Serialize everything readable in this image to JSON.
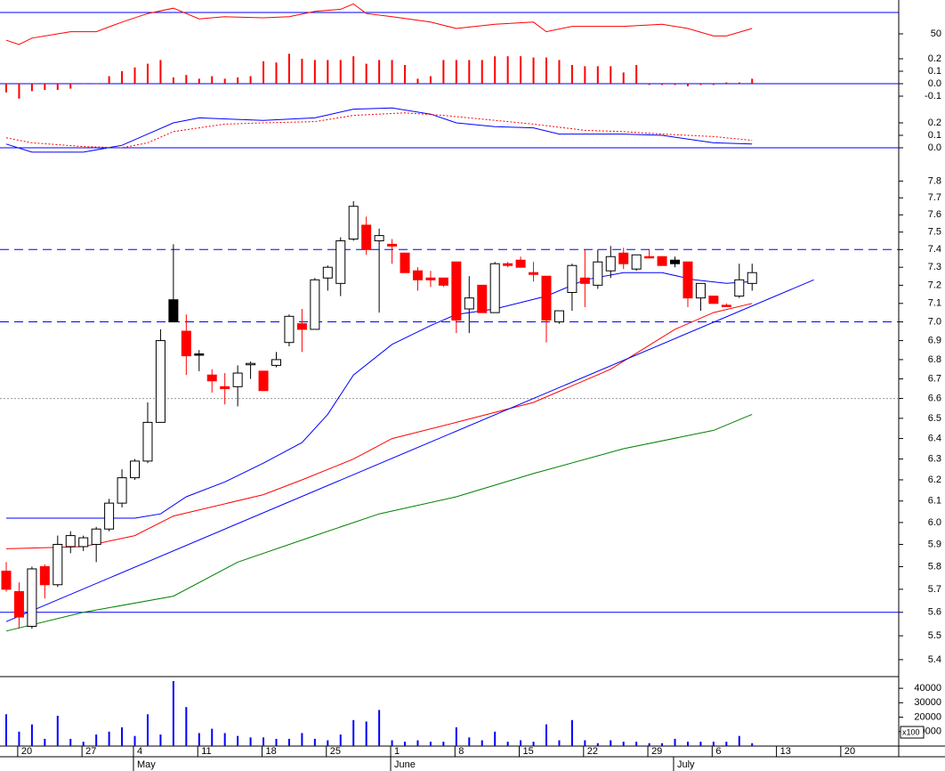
{
  "chart_data": [
    {
      "type": "line",
      "ylim": [
        30,
        80
      ],
      "yticks": [
        50
      ],
      "xlim": [
        -0.484,
        69.4
      ],
      "level": 70,
      "level_color": "#0000ff",
      "series": [
        {
          "color": "#ff0000",
          "x": [
            0,
            1,
            2,
            4,
            5,
            7,
            9,
            11,
            13,
            14,
            15,
            17,
            20,
            22,
            24,
            26,
            27,
            28,
            30,
            33,
            35,
            38,
            41,
            42,
            44,
            48,
            51,
            53,
            55,
            56,
            58
          ],
          "values": [
            44,
            40,
            46,
            50,
            52,
            52,
            61,
            69,
            74,
            69,
            64,
            66,
            65,
            66,
            71,
            73,
            78,
            69,
            66,
            61,
            55,
            59,
            61,
            52,
            57,
            57,
            59,
            55,
            48,
            48,
            55
          ]
        }
      ]
    },
    {
      "type": "bar",
      "ylim": [
        -0.15,
        0.25
      ],
      "yticks": [
        0.2,
        0.1,
        {
          "value": 0,
          "label": "0.0"
        },
        -0.1
      ],
      "xlim": [
        -0.484,
        69.4
      ],
      "color": "#ff0000",
      "zero_line_color": "#0000ff",
      "values": [
        -0.07,
        -0.12,
        -0.06,
        -0.05,
        -0.05,
        -0.04,
        0,
        0,
        0.06,
        0.1,
        0.13,
        0.16,
        0.19,
        0.05,
        0.07,
        0.04,
        0.06,
        0.04,
        0.05,
        0.06,
        0.18,
        0.17,
        0.24,
        0.2,
        0.19,
        0.19,
        0.19,
        0.22,
        0.16,
        0.19,
        0.19,
        0.15,
        0.04,
        0.06,
        0.19,
        0.19,
        0.19,
        0.19,
        0.22,
        0.22,
        0.22,
        0.21,
        0.21,
        0.19,
        0.15,
        0.14,
        0.14,
        0.14,
        0.09,
        0.15,
        -0.01,
        -0.01,
        -0.01,
        -0.02,
        -0.01,
        -0.01,
        0.01,
        0.01,
        0.04
      ]
    },
    {
      "type": "line",
      "ylim": [
        -0.05,
        0.35
      ],
      "yticks": [
        0.2,
        0.1,
        {
          "value": 0,
          "label": "0.0"
        }
      ],
      "xlim": [
        -0.484,
        69.4
      ],
      "zero_line_color": "#0000ff",
      "series": [
        {
          "color": "#0000ff",
          "style": "solid",
          "x": [
            0,
            2,
            6,
            9,
            11,
            13,
            15,
            20,
            24,
            27,
            30,
            33,
            35,
            38,
            41,
            43,
            48,
            51,
            55,
            58
          ],
          "values": [
            0.03,
            -0.035,
            -0.035,
            0.02,
            0.11,
            0.2,
            0.24,
            0.22,
            0.24,
            0.31,
            0.32,
            0.27,
            0.2,
            0.17,
            0.16,
            0.11,
            0.11,
            0.1,
            0.04,
            0.03
          ]
        },
        {
          "color": "#ff0000",
          "style": "dotted",
          "x": [
            0,
            2,
            6,
            9,
            11,
            13,
            17,
            20,
            24,
            27,
            31,
            34,
            38,
            41,
            45,
            48,
            51,
            55,
            58
          ],
          "values": [
            0.08,
            0.04,
            0.01,
            0,
            0.04,
            0.13,
            0.19,
            0.2,
            0.21,
            0.26,
            0.28,
            0.26,
            0.22,
            0.19,
            0.14,
            0.13,
            0.11,
            0.09,
            0.06
          ]
        }
      ]
    },
    {
      "type": "candlestick",
      "log_scale": true,
      "ylim": [
        5.33,
        7.98
      ],
      "xlim": [
        -0.484,
        69.4
      ],
      "yticks": [
        7.8,
        7.7,
        7.6,
        7.5,
        7.4,
        7.3,
        7.2,
        7.1,
        {
          "value": 7,
          "label": "7.0"
        },
        6.9,
        6.8,
        6.7,
        6.6,
        6.5,
        6.4,
        6.3,
        6.2,
        6.1,
        {
          "value": 6,
          "label": "6.0"
        },
        5.9,
        5.8,
        5.7,
        5.6,
        5.5,
        5.4
      ],
      "open": [
        5.78,
        5.69,
        5.54,
        5.8,
        5.72,
        5.89,
        5.89,
        5.9,
        5.97,
        6.09,
        6.21,
        6.29,
        6.48,
        7.0,
        6.95,
        6.83,
        6.72,
        6.66,
        6.66,
        6.78,
        6.74,
        6.77,
        6.89,
        6.99,
        6.96,
        7.24,
        7.21,
        7.46,
        7.54,
        7.45,
        7.43,
        7.38,
        7.28,
        7.24,
        7.24,
        7.33,
        7.07,
        7.2,
        7.05,
        7.32,
        7.34,
        7.27,
        7.25,
        7.0,
        7.16,
        7.24,
        7.2,
        7.28,
        7.38,
        7.29,
        7.36,
        7.36,
        7.32,
        7.33,
        7.13,
        7.14,
        7.09,
        7.14,
        7.21
      ],
      "close": [
        5.7,
        5.58,
        5.79,
        5.72,
        5.9,
        5.94,
        5.93,
        5.97,
        6.09,
        6.21,
        6.29,
        6.48,
        6.9,
        7.12,
        6.82,
        6.83,
        6.69,
        6.65,
        6.73,
        6.78,
        6.64,
        6.8,
        7.03,
        6.96,
        7.23,
        7.3,
        7.45,
        7.65,
        7.4,
        7.48,
        7.42,
        7.27,
        7.23,
        7.23,
        7.2,
        7.01,
        7.13,
        7.05,
        7.32,
        7.31,
        7.3,
        7.26,
        7.01,
        7.06,
        7.31,
        7.21,
        7.33,
        7.36,
        7.32,
        7.37,
        7.36,
        7.31,
        7.34,
        7.13,
        7.21,
        7.1,
        7.09,
        7.23,
        7.27
      ],
      "high": [
        5.82,
        5.73,
        5.8,
        5.81,
        5.94,
        5.96,
        5.94,
        5.98,
        6.11,
        6.25,
        6.3,
        6.58,
        6.96,
        7.43,
        7.04,
        6.85,
        6.75,
        6.73,
        6.77,
        6.79,
        6.74,
        6.84,
        7.04,
        7.07,
        7.24,
        7.31,
        7.47,
        7.68,
        7.59,
        7.52,
        7.46,
        7.38,
        7.3,
        7.28,
        7.24,
        7.33,
        7.25,
        7.2,
        7.33,
        7.33,
        7.36,
        7.33,
        7.25,
        7.06,
        7.32,
        7.4,
        7.4,
        7.42,
        7.41,
        7.37,
        7.4,
        7.36,
        7.36,
        7.33,
        7.21,
        7.14,
        7.1,
        7.32,
        7.32
      ],
      "low": [
        5.69,
        5.53,
        5.53,
        5.66,
        5.71,
        5.86,
        5.87,
        5.82,
        5.96,
        6.07,
        6.2,
        6.28,
        6.48,
        7.0,
        6.72,
        6.74,
        6.63,
        6.57,
        6.56,
        6.7,
        6.64,
        6.76,
        6.87,
        6.84,
        6.96,
        7.17,
        7.14,
        7.45,
        7.37,
        7.05,
        7.32,
        7.27,
        7.17,
        7.19,
        7.19,
        6.94,
        6.94,
        7.05,
        7.05,
        7.3,
        7.3,
        7.22,
        6.89,
        6.99,
        7.06,
        7.08,
        7.18,
        7.24,
        7.29,
        7.28,
        7.35,
        7.31,
        7.3,
        7.08,
        7.06,
        7.1,
        7.09,
        7.13,
        7.17
      ],
      "colors": [
        "#ff0000",
        "#ff0000",
        "#ffffff",
        "#ff0000",
        "#ffffff",
        "#ffffff",
        "#ffffff",
        "#ffffff",
        "#ffffff",
        "#ffffff",
        "#ffffff",
        "#ffffff",
        "#ffffff",
        "#000000",
        "#ff0000",
        "#000000",
        "#ff0000",
        "#ff0000",
        "#ffffff",
        "#ffffff",
        "#ff0000",
        "#ffffff",
        "#ffffff",
        "#ff0000",
        "#ffffff",
        "#ffffff",
        "#ffffff",
        "#ffffff",
        "#ff0000",
        "#ffffff",
        "#ff0000",
        "#ff0000",
        "#ff0000",
        "#ff0000",
        "#ff0000",
        "#ff0000",
        "#ffffff",
        "#ff0000",
        "#ffffff",
        "#ff0000",
        "#ff0000",
        "#ff0000",
        "#ff0000",
        "#ffffff",
        "#ffffff",
        "#ff0000",
        "#ffffff",
        "#ffffff",
        "#ff0000",
        "#ffffff",
        "#ff0000",
        "#ff0000",
        "#000000",
        "#ff0000",
        "#ffffff",
        "#ff0000",
        "#ff0000",
        "#ffffff",
        "#ffffff"
      ],
      "series": [
        {
          "color": "#0000ff",
          "x": [
            0,
            9,
            10,
            12,
            14,
            17,
            20,
            23,
            25,
            27,
            30,
            33,
            35,
            38,
            42,
            45,
            48,
            51,
            53.5,
            56,
            58
          ],
          "values": [
            6.02,
            6.02,
            6.02,
            6.04,
            6.12,
            6.19,
            6.28,
            6.38,
            6.52,
            6.72,
            6.88,
            6.98,
            7.04,
            7.07,
            7.14,
            7.23,
            7.27,
            7.27,
            7.23,
            7.21,
            7.22
          ]
        },
        {
          "color": "#ff0000",
          "x": [
            0,
            6,
            10,
            13,
            20,
            23,
            27,
            30,
            35,
            41,
            47,
            52,
            55,
            58
          ],
          "values": [
            5.88,
            5.89,
            5.94,
            6.03,
            6.13,
            6.2,
            6.3,
            6.4,
            6.48,
            6.58,
            6.75,
            6.96,
            7.05,
            7.1
          ]
        },
        {
          "color": "#008000",
          "x": [
            0,
            6,
            13,
            18,
            24,
            29,
            35,
            41,
            48,
            55,
            58
          ],
          "values": [
            5.52,
            5.6,
            5.67,
            5.82,
            5.94,
            6.04,
            6.12,
            6.23,
            6.35,
            6.44,
            6.52
          ]
        },
        {
          "color": "#0000ff",
          "x": [
            0,
            62.8
          ],
          "values": [
            5.56,
            7.23
          ]
        }
      ],
      "hlines": [
        {
          "value": 7.4,
          "color": "#0000ff",
          "style": "dashed"
        },
        {
          "value": 7.0,
          "color": "#0000ff",
          "style": "dashed"
        },
        {
          "value": 6.6,
          "color": "#999999",
          "style": "dotted"
        },
        {
          "value": 5.6,
          "color": "#0000ff",
          "style": "solid"
        }
      ]
    },
    {
      "type": "bar",
      "ylim": [
        0,
        45000
      ],
      "yticks": [
        40000,
        30000,
        20000,
        10000
      ],
      "xlim": [
        -0.484,
        69.4
      ],
      "color": "#0000ff",
      "unit_label": "x100",
      "values": [
        22000,
        10000,
        15000,
        5000,
        21000,
        5000,
        3000,
        8000,
        10000,
        13000,
        7000,
        22000,
        8000,
        45000,
        27000,
        9000,
        12000,
        9000,
        7000,
        6000,
        6000,
        5000,
        5000,
        9000,
        5000,
        4000,
        8000,
        18000,
        17000,
        25000,
        4000,
        3000,
        4000,
        3000,
        3000,
        13000,
        6000,
        4000,
        10000,
        3000,
        4000,
        3000,
        15000,
        4000,
        18000,
        4000,
        2000,
        4000,
        3000,
        3000,
        2000,
        2000,
        5000,
        3000,
        3000,
        3000,
        3000,
        7000,
        2000
      ],
      "xticks": [
        {
          "value": 2,
          "label": "20"
        },
        {
          "value": 7,
          "label": "27"
        },
        {
          "value": 11,
          "label": "4"
        },
        {
          "value": 16,
          "label": "11"
        },
        {
          "value": 21,
          "label": "18"
        },
        {
          "value": 26,
          "label": "25"
        },
        {
          "value": 31,
          "label": "1"
        },
        {
          "value": 36,
          "label": "8"
        },
        {
          "value": 41,
          "label": "15"
        },
        {
          "value": 46,
          "label": "22"
        },
        {
          "value": 51,
          "label": "29"
        },
        {
          "value": 56,
          "label": "6"
        },
        {
          "value": 61,
          "label": "13"
        },
        {
          "value": 66,
          "label": "20"
        }
      ],
      "month_ticks": [
        {
          "value": 11,
          "label": "May"
        },
        {
          "value": 31,
          "label": "June"
        },
        {
          "value": 53,
          "label": "July"
        }
      ]
    }
  ]
}
